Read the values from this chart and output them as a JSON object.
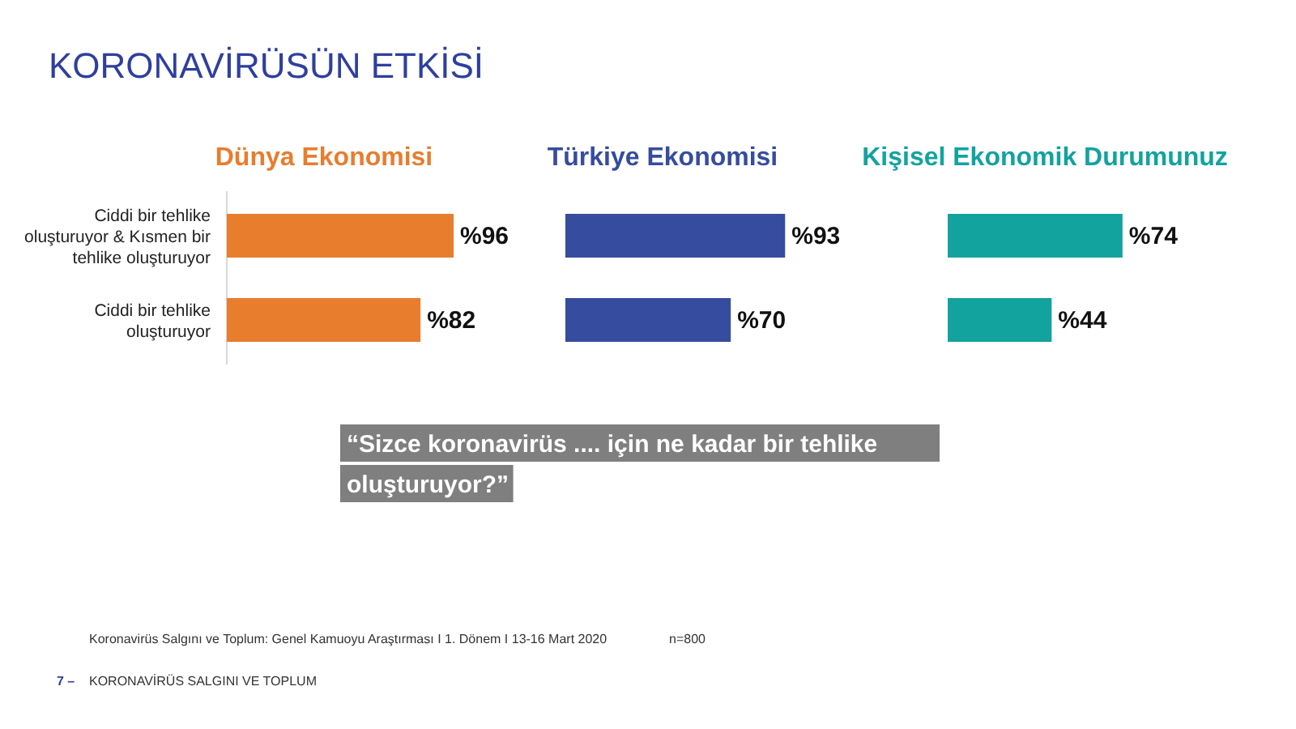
{
  "chart_data": [
    {
      "type": "bar",
      "orientation": "horizontal",
      "title": "Dünya Ekonomisi",
      "categories": [
        "Ciddi bir tehlike oluşturuyor & Kısmen bir tehlike oluşturuyor",
        "Ciddi bir tehlike oluşturuyor"
      ],
      "values": [
        96,
        82
      ],
      "value_labels": [
        "%96",
        "%82"
      ],
      "color": "#e87d2e"
    },
    {
      "type": "bar",
      "orientation": "horizontal",
      "title": "Türkiye Ekonomisi",
      "categories": [
        null,
        null
      ],
      "values": [
        93,
        70
      ],
      "value_labels": [
        "%93",
        "%70"
      ],
      "color": "#364c9e"
    },
    {
      "type": "bar",
      "orientation": "horizontal",
      "title": "Kişisel Ekonomik Durumunuz",
      "categories": [
        null,
        null
      ],
      "values": [
        74,
        44
      ],
      "value_labels": [
        "%74",
        "%44"
      ],
      "color": "#12a39f"
    },
    {
      "type": "other",
      "title": "KORONAVİRÜSÜN ETKİSİ",
      "annotations": [
        "“Sizce koronavirüs .... için ne kadar bir tehlike oluşturuyor?”",
        "Koronavirüs Salgını ve Toplum:  Genel Kamuoyu Araştırması I 1. Dönem I 13-16 Mart 2020",
        "n=800",
        "7 –",
        "KORONAVİRÜS  SALGINI  VE TOPLUM"
      ]
    }
  ]
}
